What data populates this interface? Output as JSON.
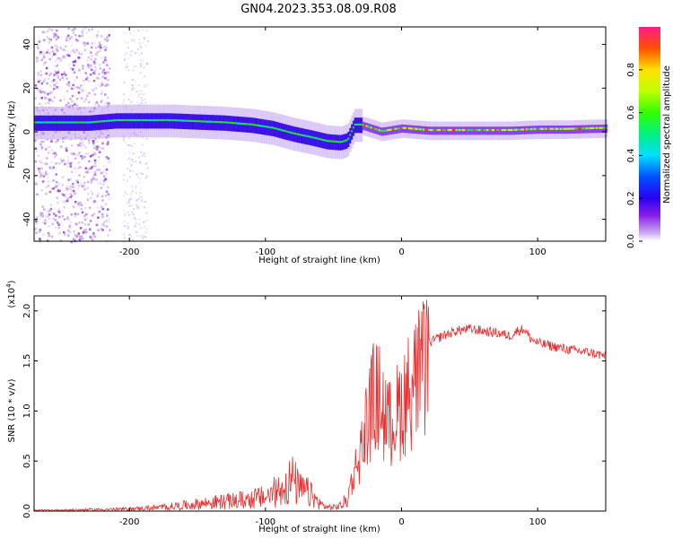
{
  "title": "GN04.2023.353.08.09.R08",
  "colors": {
    "snr_line": "#e83030",
    "axis": "#000000"
  },
  "chart_data": [
    {
      "type": "heatmap",
      "xlabel": "Height of straight line (km)",
      "ylabel": "Frequency (Hz)",
      "xlim": [
        -270,
        150
      ],
      "ylim": [
        -50,
        48
      ],
      "x_ticks": [
        -200,
        -100,
        0,
        100
      ],
      "x_tick_labels": [
        "-200",
        "-100",
        "0",
        "100"
      ],
      "y_ticks": [
        -40,
        -20,
        0,
        20,
        40
      ],
      "y_tick_labels": [
        "-40",
        "-20",
        "0",
        "20",
        "40"
      ],
      "ridge": {
        "x": [
          -265,
          -250,
          -230,
          -210,
          -190,
          -170,
          -150,
          -130,
          -110,
          -95,
          -80,
          -65,
          -55,
          -45,
          -40,
          -35,
          -30,
          -25,
          -20,
          -15,
          -10,
          -5,
          0,
          20,
          50,
          80,
          100,
          120,
          150
        ],
        "y": [
          4,
          4,
          4,
          5,
          5,
          5,
          4.5,
          4,
          3,
          1.5,
          -1,
          -3,
          -4.5,
          -5,
          -4,
          3,
          3,
          2,
          1,
          0,
          0.5,
          1,
          1.5,
          0.5,
          0.5,
          0.5,
          1,
          1,
          1.5
        ]
      },
      "colorbar": {
        "label": "Normalized spectral amplitude",
        "range": [
          0,
          1
        ],
        "ticks": [
          0.0,
          0.2,
          0.4,
          0.6,
          0.8
        ],
        "tick_labels": [
          "0.0",
          "0.2",
          "0.4",
          "0.6",
          "0.8"
        ]
      },
      "grid": false
    },
    {
      "type": "line",
      "xlabel": "Height of straight line (km)",
      "ylabel": "SNR (10 * v/v)",
      "y_scale_label_base": "(x10",
      "y_scale_label_exp": "4",
      "y_scale_label_end": ")",
      "xlim": [
        -270,
        150
      ],
      "ylim": [
        0,
        2.15
      ],
      "x_ticks": [
        -200,
        -100,
        0,
        100
      ],
      "x_tick_labels": [
        "-200",
        "-100",
        "0",
        "100"
      ],
      "y_ticks": [
        0.0,
        0.5,
        1.0,
        1.5,
        2.0
      ],
      "y_tick_labels": [
        "0.0",
        "0.5",
        "1.0",
        "1.5",
        "2.0"
      ],
      "envelope": {
        "x": [
          -270,
          -230,
          -200,
          -180,
          -160,
          -140,
          -120,
          -100,
          -90,
          -80,
          -75,
          -70,
          -65,
          -60,
          -55,
          -50,
          -45,
          -40,
          -35,
          -30,
          -25,
          -20,
          -15,
          -10,
          -5,
          0,
          10,
          20,
          30,
          40,
          50,
          60,
          70,
          80,
          85,
          90,
          95,
          100,
          110,
          120,
          130,
          140,
          150
        ],
        "y": [
          0.01,
          0.02,
          0.03,
          0.05,
          0.08,
          0.12,
          0.15,
          0.2,
          0.3,
          0.45,
          0.3,
          0.28,
          0.2,
          0.1,
          0.06,
          0.05,
          0.08,
          0.15,
          0.45,
          0.7,
          1.1,
          1.35,
          1.3,
          1.0,
          1.1,
          1.25,
          1.55,
          1.68,
          1.75,
          1.8,
          1.82,
          1.8,
          1.78,
          1.75,
          1.8,
          1.82,
          1.72,
          1.68,
          1.65,
          1.62,
          1.6,
          1.58,
          1.55
        ]
      },
      "grid": false
    }
  ]
}
